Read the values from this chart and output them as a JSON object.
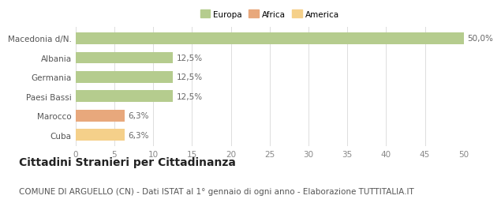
{
  "categories": [
    "Cuba",
    "Marocco",
    "Paesi Bassi",
    "Germania",
    "Albania",
    "Macedonia d/N."
  ],
  "values": [
    6.3,
    6.3,
    12.5,
    12.5,
    12.5,
    50.0
  ],
  "bar_colors": [
    "#f5d08a",
    "#e8a87c",
    "#b5cc8e",
    "#b5cc8e",
    "#b5cc8e",
    "#b5cc8e"
  ],
  "bar_labels": [
    "6,3%",
    "6,3%",
    "12,5%",
    "12,5%",
    "12,5%",
    "50,0%"
  ],
  "legend_labels": [
    "Europa",
    "Africa",
    "America"
  ],
  "legend_colors": [
    "#b5cc8e",
    "#e8a87c",
    "#f5d08a"
  ],
  "xlim": [
    0,
    50
  ],
  "xticks": [
    0,
    5,
    10,
    15,
    20,
    25,
    30,
    35,
    40,
    45,
    50
  ],
  "title": "Cittadini Stranieri per Cittadinanza",
  "subtitle": "COMUNE DI ARGUELLO (CN) - Dati ISTAT al 1° gennaio di ogni anno - Elaborazione TUTTITALIA.IT",
  "title_fontsize": 10,
  "subtitle_fontsize": 7.5,
  "label_fontsize": 7.5,
  "tick_fontsize": 7.5,
  "background_color": "#ffffff",
  "grid_color": "#dddddd"
}
